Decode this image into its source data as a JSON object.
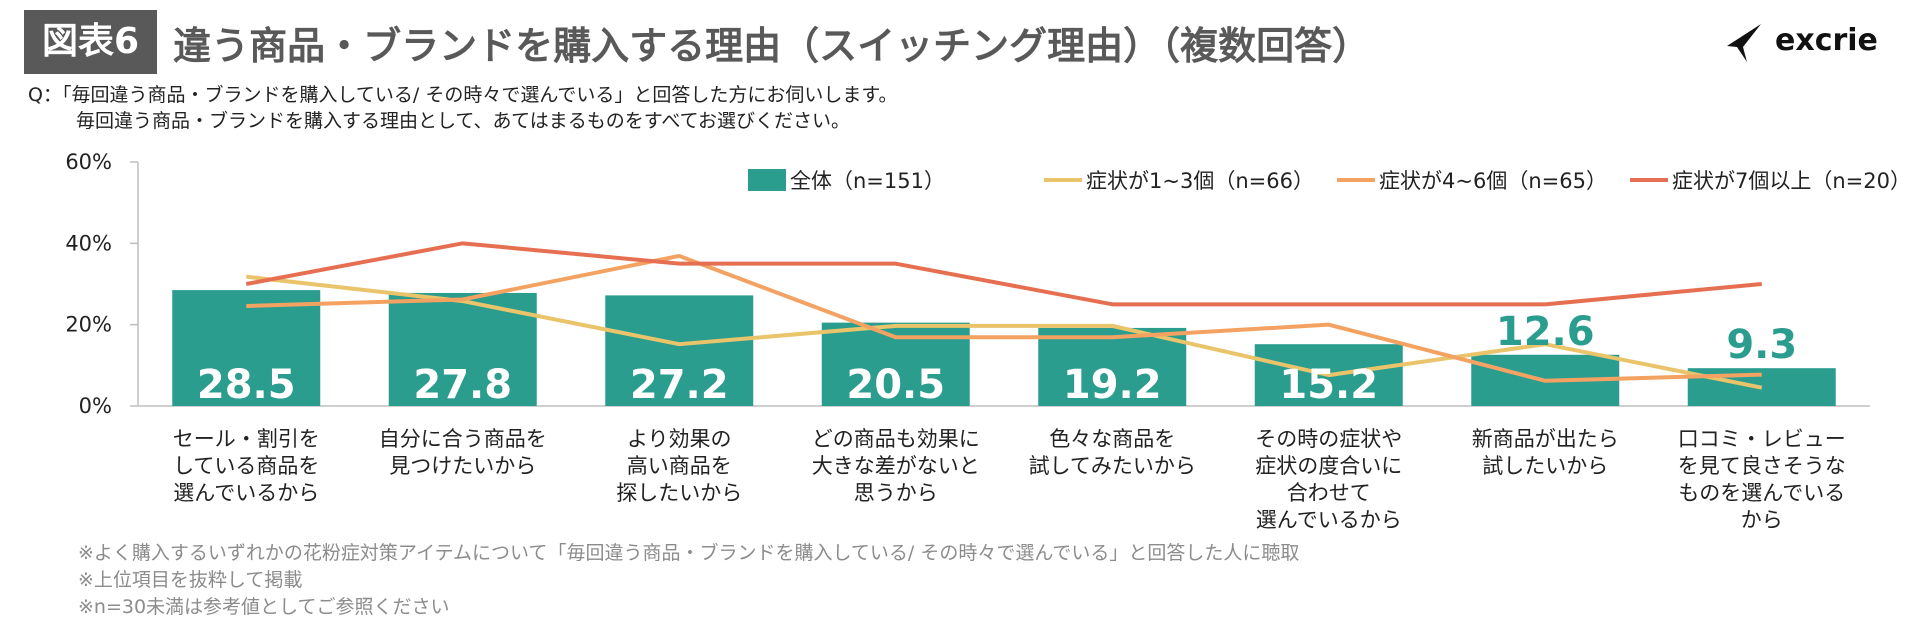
{
  "header": {
    "badge": "図表6",
    "title": "違う商品・ブランドを購入する理由（スイッチング理由）（複数回答）",
    "logo_text": "excrie"
  },
  "question": {
    "line1": "Q：「毎回違う商品・ブランドを購入している/ その時々で選んでいる」と回答した方にお伺いします。",
    "line2": "毎回違う商品・ブランドを購入する理由として、あてはまるものをすべてお選びください。"
  },
  "notes": [
    "※よく購入するいずれかの花粉症対策アイテムについて「毎回違う商品・ブランドを購入している/ その時々で選んでいる」と回答した人に聴取",
    "※上位項目を抜粋して掲載",
    "※n=30未満は参考値としてご参照ください"
  ],
  "colors": {
    "bar": "#2a9d8f",
    "s1": "#e9c46a",
    "s2": "#f4a261",
    "s3": "#e76f51"
  },
  "chart_data": {
    "type": "bar+line",
    "categories": [
      [
        "セール・割引を",
        "している商品を",
        "選んでいるから"
      ],
      [
        "自分に合う商品を",
        "見つけたいから"
      ],
      [
        "より効果の",
        "高い商品を",
        "探したいから"
      ],
      [
        "どの商品も効果に",
        "大きな差がないと",
        "思うから"
      ],
      [
        "色々な商品を",
        "試してみたいから"
      ],
      [
        "その時の症状や",
        "症状の度合いに",
        "合わせて",
        "選んでいるから"
      ],
      [
        "新商品が出たら",
        "試したいから"
      ],
      [
        "口コミ・レビュー",
        "を見て良さそうな",
        "ものを選んでいる",
        "から"
      ]
    ],
    "y_ticks": [
      "0%",
      "20%",
      "40%",
      "60%"
    ],
    "ylim": [
      0,
      60
    ],
    "series": [
      {
        "name": "全体（n=151）",
        "kind": "bar",
        "values": [
          28.5,
          27.8,
          27.2,
          20.5,
          19.2,
          15.2,
          12.6,
          9.3
        ],
        "labels": [
          "28.5",
          "27.8",
          "27.2",
          "20.5",
          "19.2",
          "15.2",
          "12.6",
          "9.3"
        ]
      },
      {
        "name": "症状が1~3個（n=66）",
        "kind": "line",
        "values": [
          31.8,
          25.8,
          15.2,
          19.7,
          19.7,
          7.6,
          15.2,
          4.5
        ]
      },
      {
        "name": "症状が4~6個（n=65）",
        "kind": "line",
        "values": [
          24.6,
          26.2,
          36.9,
          16.9,
          16.9,
          20.0,
          6.2,
          7.7
        ]
      },
      {
        "name": "症状が7個以上（n=20）",
        "kind": "line",
        "values": [
          30.0,
          40.0,
          35.0,
          35.0,
          25.0,
          25.0,
          25.0,
          30.0
        ]
      }
    ],
    "legend_position": "top-right",
    "grid": false
  }
}
